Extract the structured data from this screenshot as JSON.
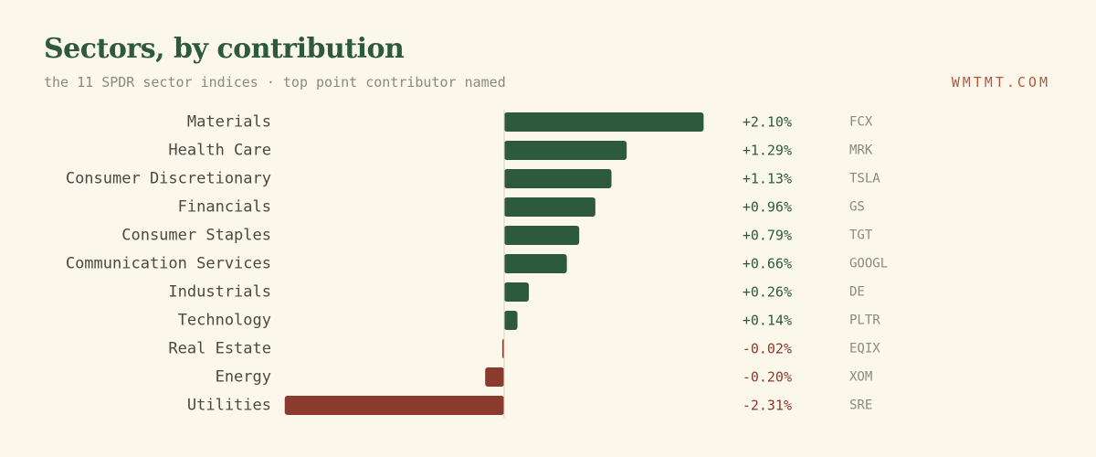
{
  "header": {
    "title": "Sectors, by contribution",
    "subtitle": "the 11 SPDR sector indices · top point contributor named",
    "brand": "WMTMT.COM"
  },
  "colors": {
    "background": "#fbf7ea",
    "positive": "#2d5a3d",
    "negative": "#8b3a2e",
    "label": "#4a4a44",
    "ticker": "#8a8a80",
    "brand": "#b5583f"
  },
  "chart_data": {
    "type": "bar",
    "orientation": "horizontal",
    "title": "Sectors, by contribution",
    "subtitle": "the 11 SPDR sector indices · top point contributor named",
    "categories": [
      "Materials",
      "Health Care",
      "Consumer Discretionary",
      "Financials",
      "Consumer Staples",
      "Communication Services",
      "Industrials",
      "Technology",
      "Real Estate",
      "Energy",
      "Utilities"
    ],
    "values": [
      2.1,
      1.29,
      1.13,
      0.96,
      0.79,
      0.66,
      0.26,
      0.14,
      -0.02,
      -0.2,
      -2.31
    ],
    "value_labels": [
      "+2.10%",
      "+1.29%",
      "+1.13%",
      "+0.96%",
      "+0.79%",
      "+0.66%",
      "+0.26%",
      "+0.14%",
      "-0.02%",
      "-0.20%",
      "-2.31%"
    ],
    "tickers": [
      "FCX",
      "MRK",
      "TSLA",
      "GS",
      "TGT",
      "GOOGL",
      "DE",
      "PLTR",
      "EQIX",
      "XOM",
      "SRE"
    ],
    "unit": "%",
    "xlim": [
      -2.31,
      2.1
    ],
    "grid": false,
    "legend": "none"
  }
}
